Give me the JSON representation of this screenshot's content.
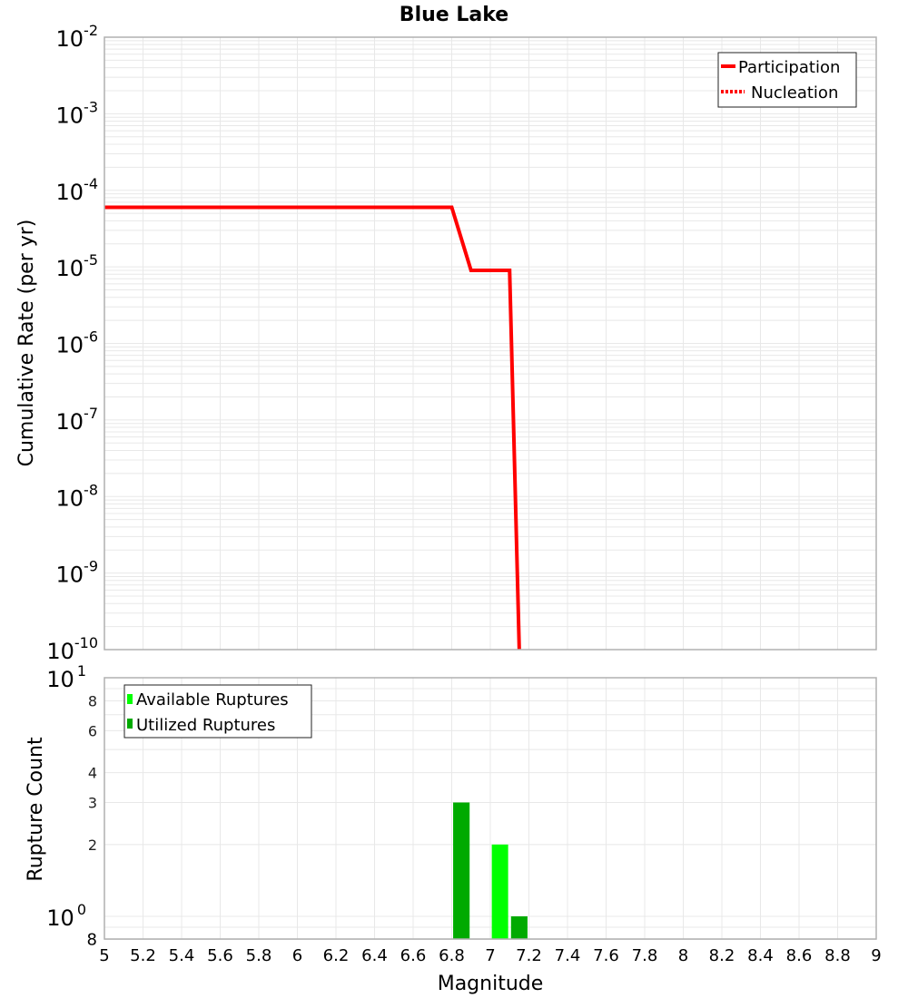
{
  "chart_data": [
    {
      "type": "line",
      "title": "Blue Lake",
      "xlabel": "",
      "ylabel": "Cumulative Rate (per yr)",
      "yscale": "log",
      "xlim": [
        5,
        9
      ],
      "ylim": [
        1e-10,
        0.01
      ],
      "grid": true,
      "legend_position": "top-right",
      "y_ticks": [
        {
          "base": "10",
          "exp": "-2"
        },
        {
          "base": "10",
          "exp": "-3"
        },
        {
          "base": "10",
          "exp": "-4"
        },
        {
          "base": "10",
          "exp": "-5"
        },
        {
          "base": "10",
          "exp": "-6"
        },
        {
          "base": "10",
          "exp": "-7"
        },
        {
          "base": "10",
          "exp": "-8"
        },
        {
          "base": "10",
          "exp": "-9"
        },
        {
          "base": "10",
          "exp": "-10"
        }
      ],
      "series": [
        {
          "name": "Participation",
          "color": "#ff0000",
          "style": "solid",
          "x": [
            5.0,
            6.8,
            6.9,
            7.1,
            7.15
          ],
          "y": [
            6e-05,
            6e-05,
            9e-06,
            9e-06,
            1e-10
          ]
        },
        {
          "name": "Nucleation",
          "color": "#ff0000",
          "style": "dotted",
          "x": [
            5.0,
            6.8,
            6.9,
            7.1,
            7.15
          ],
          "y": [
            6e-05,
            6e-05,
            9e-06,
            9e-06,
            1e-10
          ]
        }
      ]
    },
    {
      "type": "bar",
      "title": "",
      "xlabel": "Magnitude",
      "ylabel": "Rupture Count",
      "yscale": "log",
      "xlim": [
        5,
        9
      ],
      "ylim": [
        0.8,
        10
      ],
      "grid": true,
      "legend_position": "top-left",
      "x_ticks": [
        "5",
        "5.2",
        "5.4",
        "5.6",
        "5.8",
        "6",
        "6.2",
        "6.4",
        "6.6",
        "6.8",
        "7",
        "7.2",
        "7.4",
        "7.6",
        "7.8",
        "8",
        "8.2",
        "8.4",
        "8.6",
        "8.8",
        "9"
      ],
      "y_major_ticks": [
        {
          "base": "10",
          "exp": "1",
          "value": 10
        },
        {
          "base": "10",
          "exp": "0",
          "value": 1
        }
      ],
      "y_minor_ticks": [
        {
          "label": "8",
          "value": 8
        },
        {
          "label": "6",
          "value": 6
        },
        {
          "label": "4",
          "value": 4
        },
        {
          "label": "3",
          "value": 3
        },
        {
          "label": "2",
          "value": 2
        },
        {
          "label": "8",
          "value": 0.8
        }
      ],
      "series": [
        {
          "name": "Available Ruptures",
          "color": "#00ff00",
          "bars": [
            {
              "x": 6.85,
              "value": 3
            },
            {
              "x": 7.05,
              "value": 2
            },
            {
              "x": 7.15,
              "value": 1
            }
          ]
        },
        {
          "name": "Utilized Ruptures",
          "color": "#00aa00",
          "bars": [
            {
              "x": 6.85,
              "value": 3
            },
            {
              "x": 7.15,
              "value": 1
            }
          ]
        }
      ]
    }
  ],
  "title": "Blue Lake",
  "top_plot": {
    "ylabel": "Cumulative Rate (per yr)",
    "legend": [
      {
        "label": "Participation",
        "style": "solid"
      },
      {
        "label": "Nucleation",
        "style": "dotted"
      }
    ]
  },
  "bottom_plot": {
    "ylabel": "Rupture Count",
    "xlabel": "Magnitude",
    "legend": [
      {
        "label": "Available Ruptures",
        "color": "#00ff00"
      },
      {
        "label": "Utilized Ruptures",
        "color": "#00aa00"
      }
    ]
  },
  "colors": {
    "line": "#ff0000",
    "available": "#00ff00",
    "utilized": "#00aa00",
    "grid": "#e8e8e8",
    "frame": "#b0b0b0"
  }
}
